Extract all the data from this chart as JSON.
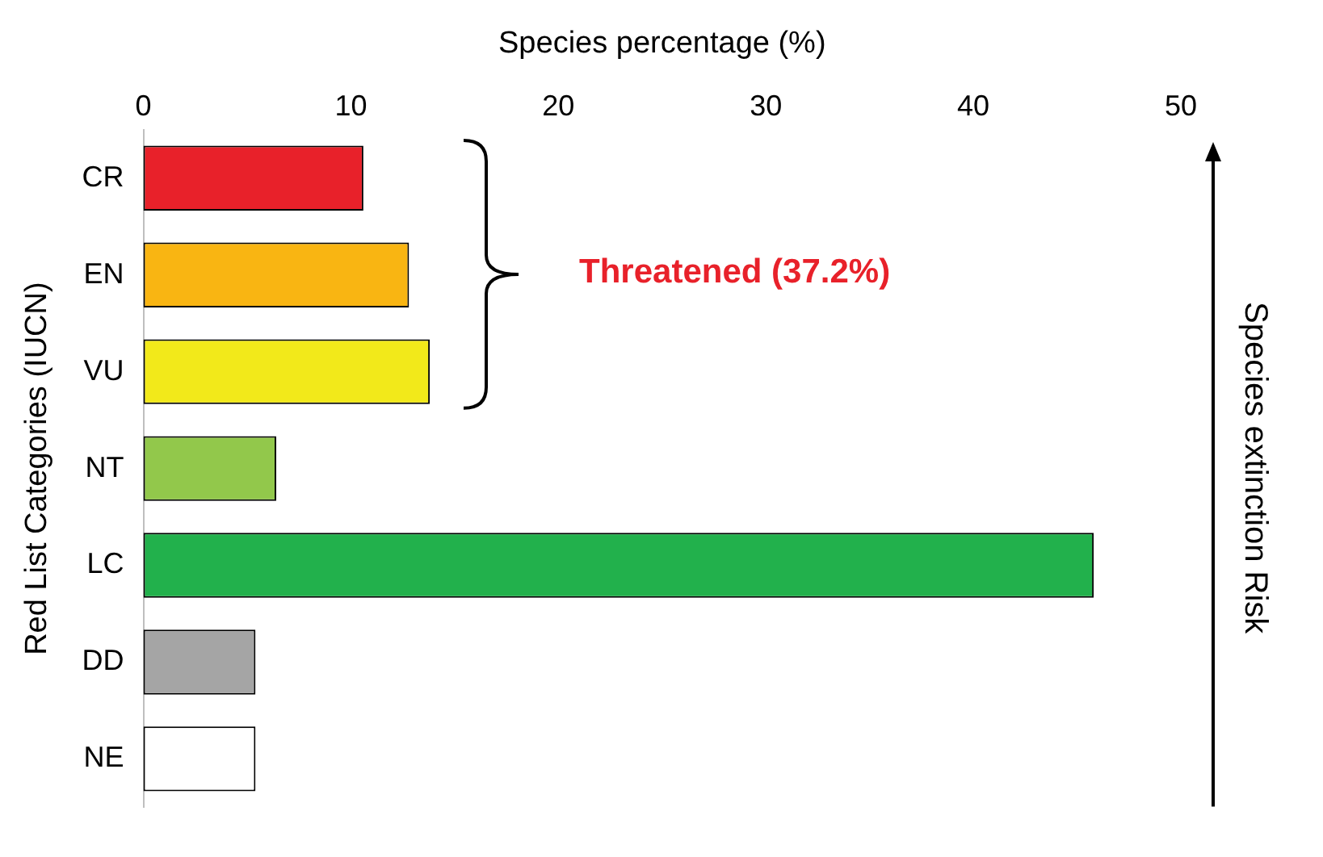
{
  "chart_data": {
    "type": "bar",
    "orientation": "horizontal",
    "xlabel": "Species percentage (%)",
    "ylabel": "Red List Categories (IUCN)",
    "categories": [
      "CR",
      "EN",
      "VU",
      "NT",
      "LC",
      "DD",
      "NE"
    ],
    "values": [
      10.6,
      12.8,
      13.8,
      6.4,
      45.8,
      5.4,
      5.4
    ],
    "colors": [
      "#e8212a",
      "#f9b512",
      "#f2e91a",
      "#92c84b",
      "#22b14c",
      "#a5a5a5",
      "#ffffff"
    ],
    "xlim": [
      0,
      50
    ],
    "xticks": [
      0,
      10,
      20,
      30,
      40,
      50
    ],
    "grid": false,
    "legend": false,
    "annotations": [
      "Threatened (37.2%)",
      "Species extinction Risk"
    ]
  }
}
